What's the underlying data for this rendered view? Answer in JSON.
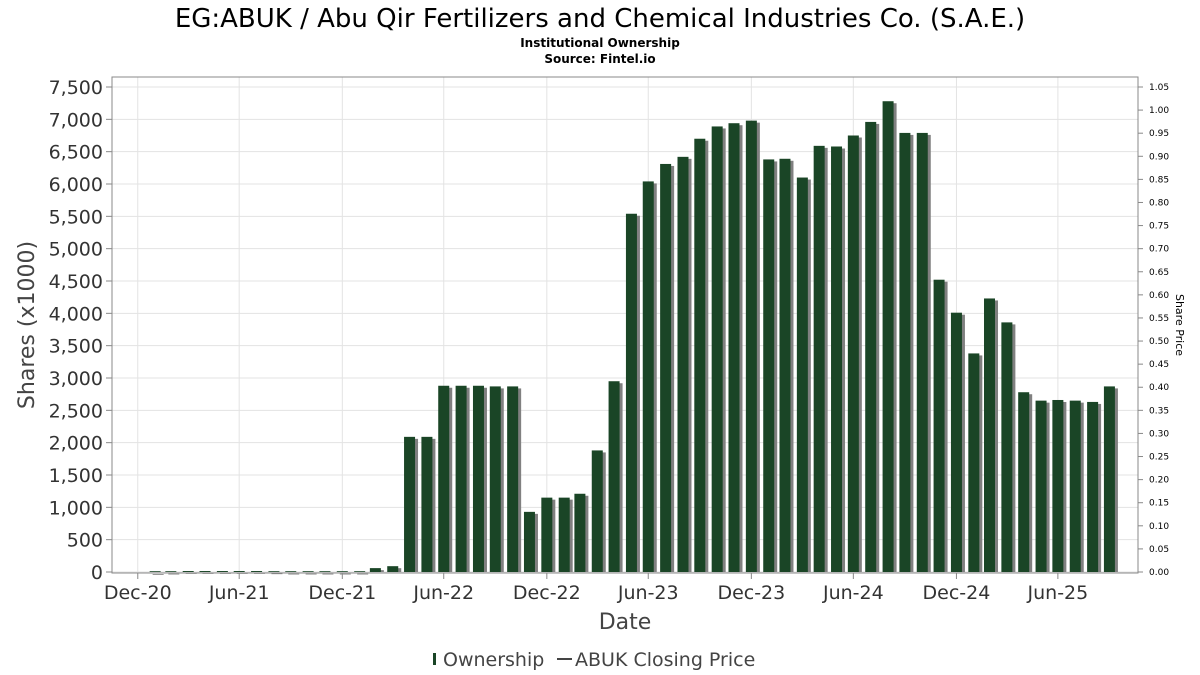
{
  "title": "EG:ABUK / Abu Qir Fertilizers and Chemical Industries Co. (S.A.E.)",
  "subtitle": "Institutional Ownership",
  "source": "Source: Fintel.io",
  "colors": {
    "bar": "#1a4526",
    "bar_shadow": "#808080",
    "grid": "#e3e3e3",
    "axis": "#888888"
  },
  "chart_data": {
    "type": "bar",
    "title": "EG:ABUK / Abu Qir Fertilizers and Chemical Industries Co. (S.A.E.)",
    "subtitle": "Institutional Ownership",
    "xlabel": "Date",
    "ylabel": "Shares (x1000)",
    "y2label": "Share Price",
    "ylim": [
      0,
      7500
    ],
    "y2lim": [
      0,
      1.05
    ],
    "xlim": [
      "2020-11-15",
      "2025-11-20"
    ],
    "grid": true,
    "legend_position": "bottom",
    "x_ticks": [
      {
        "date": "2020-12-31",
        "label": "Dec-20"
      },
      {
        "date": "2021-06-30",
        "label": "Jun-21"
      },
      {
        "date": "2021-12-31",
        "label": "Dec-21"
      },
      {
        "date": "2022-06-30",
        "label": "Jun-22"
      },
      {
        "date": "2022-12-31",
        "label": "Dec-22"
      },
      {
        "date": "2023-06-30",
        "label": "Jun-23"
      },
      {
        "date": "2023-12-31",
        "label": "Dec-23"
      },
      {
        "date": "2024-06-30",
        "label": "Jun-24"
      },
      {
        "date": "2024-12-31",
        "label": "Dec-24"
      },
      {
        "date": "2025-06-30",
        "label": "Jun-25"
      }
    ],
    "y_ticks": [
      "0",
      "500",
      "1,000",
      "1,500",
      "2,000",
      "2,500",
      "3,000",
      "3,500",
      "4,000",
      "4,500",
      "5,000",
      "5,500",
      "6,000",
      "6,500",
      "7,000",
      "7,500"
    ],
    "y2_ticks": [
      "0.00",
      "0.05",
      "0.10",
      "0.15",
      "0.20",
      "0.25",
      "0.30",
      "0.35",
      "0.40",
      "0.45",
      "0.50",
      "0.55",
      "0.60",
      "0.65",
      "0.70",
      "0.75",
      "0.80",
      "0.85",
      "0.90",
      "0.95",
      "1.00",
      "1.05"
    ],
    "series": [
      {
        "name": "Ownership",
        "type": "bar",
        "dates": [
          "2021-01-31",
          "2021-02-28",
          "2021-03-31",
          "2021-04-30",
          "2021-05-31",
          "2021-06-30",
          "2021-07-31",
          "2021-08-31",
          "2021-09-30",
          "2021-10-31",
          "2021-11-30",
          "2021-12-31",
          "2022-01-31",
          "2022-02-28",
          "2022-03-31",
          "2022-04-30",
          "2022-05-31",
          "2022-06-30",
          "2022-07-31",
          "2022-08-31",
          "2022-09-30",
          "2022-10-31",
          "2022-11-30",
          "2022-12-31",
          "2023-01-31",
          "2023-02-28",
          "2023-03-31",
          "2023-04-30",
          "2023-05-31",
          "2023-06-30",
          "2023-07-31",
          "2023-08-31",
          "2023-09-30",
          "2023-10-31",
          "2023-11-30",
          "2023-12-31",
          "2024-01-31",
          "2024-02-29",
          "2024-03-31",
          "2024-04-30",
          "2024-05-31",
          "2024-06-30",
          "2024-07-31",
          "2024-08-31",
          "2024-09-30",
          "2024-10-31",
          "2024-11-30",
          "2024-12-31",
          "2025-01-31",
          "2025-02-28",
          "2025-03-31",
          "2025-04-30",
          "2025-05-31",
          "2025-06-30",
          "2025-07-31",
          "2025-08-31",
          "2025-09-30"
        ],
        "values": [
          0,
          5,
          15,
          15,
          15,
          15,
          15,
          10,
          5,
          5,
          5,
          5,
          5,
          60,
          90,
          2090,
          2090,
          2880,
          2880,
          2880,
          2870,
          2870,
          930,
          1150,
          1150,
          1210,
          1880,
          2950,
          5540,
          6040,
          6310,
          6420,
          6700,
          6890,
          6940,
          6980,
          6380,
          6390,
          6100,
          6590,
          6580,
          6750,
          6960,
          7280,
          6790,
          6790,
          4520,
          4010,
          3380,
          4230,
          3860,
          2780,
          2650,
          2660,
          2650,
          2630,
          2870
        ]
      },
      {
        "name": "ABUK Closing Price",
        "type": "line",
        "values": []
      }
    ]
  }
}
